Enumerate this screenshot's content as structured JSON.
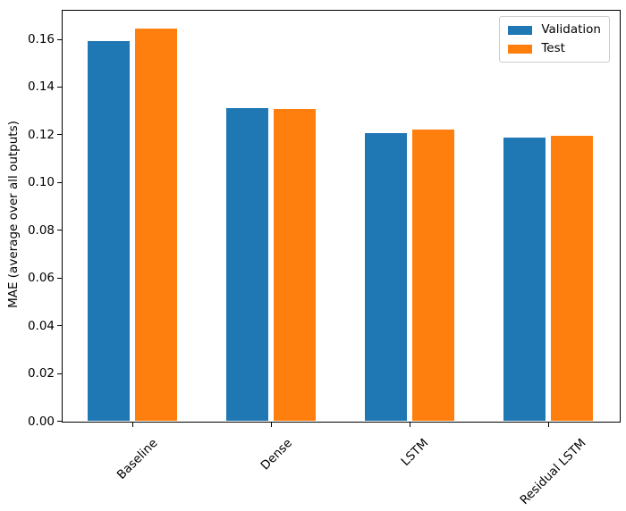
{
  "chart_data": {
    "type": "bar",
    "title": "",
    "xlabel": "",
    "ylabel": "MAE (average over all outputs)",
    "categories": [
      "Baseline",
      "Dense",
      "LSTM",
      "Residual LSTM"
    ],
    "series": [
      {
        "name": "Validation",
        "color": "#1f77b4",
        "values": [
          0.1592,
          0.1313,
          0.1207,
          0.1188
        ]
      },
      {
        "name": "Test",
        "color": "#ff7f0e",
        "values": [
          0.1644,
          0.131,
          0.1222,
          0.1197
        ]
      }
    ],
    "yticks": [
      "0.00",
      "0.02",
      "0.04",
      "0.06",
      "0.08",
      "0.10",
      "0.12",
      "0.14",
      "0.16"
    ],
    "ylim": [
      0,
      0.172
    ],
    "grid": false,
    "legend": {
      "position": "upper right",
      "entries": [
        "Validation",
        "Test"
      ]
    },
    "xtick_rotation_deg": 45
  },
  "colors": {
    "spine": "#000000",
    "legend_border": "#cccccc",
    "background": "#ffffff"
  }
}
